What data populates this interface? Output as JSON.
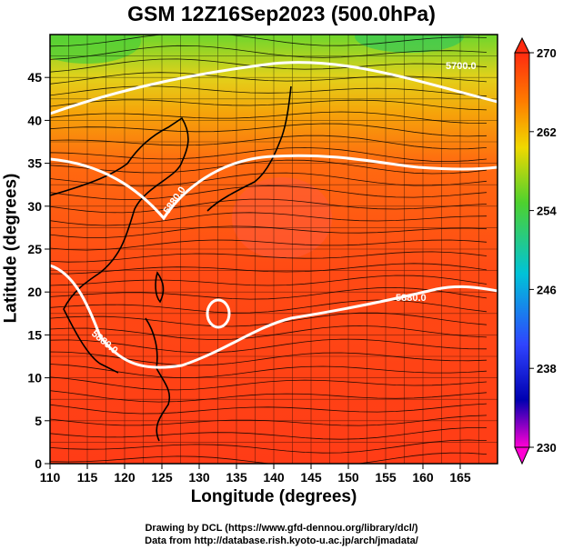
{
  "title": "GSM 12Z16Sep2023 (500.0hPa)",
  "xlabel": "Longitude (degrees)",
  "ylabel": "Latitude  (degrees)",
  "credits": {
    "line1": "Drawing by DCL (https://www.gfd-dennou.org/library/dcl/)",
    "line2": "Data from http://database.rish.kyoto-u.ac.jp/arch/jmadata/"
  },
  "map": {
    "lon_range": [
      110,
      170
    ],
    "lat_range": [
      0,
      50
    ],
    "x_ticks": [
      "110",
      "115",
      "120",
      "125",
      "130",
      "135",
      "140",
      "145",
      "150",
      "155",
      "160",
      "165"
    ],
    "y_ticks": [
      "0",
      "5",
      "10",
      "15",
      "20",
      "25",
      "30",
      "35",
      "40",
      "45"
    ],
    "contour_labels": [
      "5700.0",
      "5880.0",
      "5880.0",
      "5880.0"
    ]
  },
  "colorbar": {
    "labels": [
      "270",
      "262",
      "254",
      "246",
      "238",
      "230"
    ],
    "colors": [
      "#ff2b10",
      "#ff8a00",
      "#f4d400",
      "#5bd630",
      "#00c3d8",
      "#2f44ff",
      "#0000b0",
      "#ff00d4"
    ]
  }
}
